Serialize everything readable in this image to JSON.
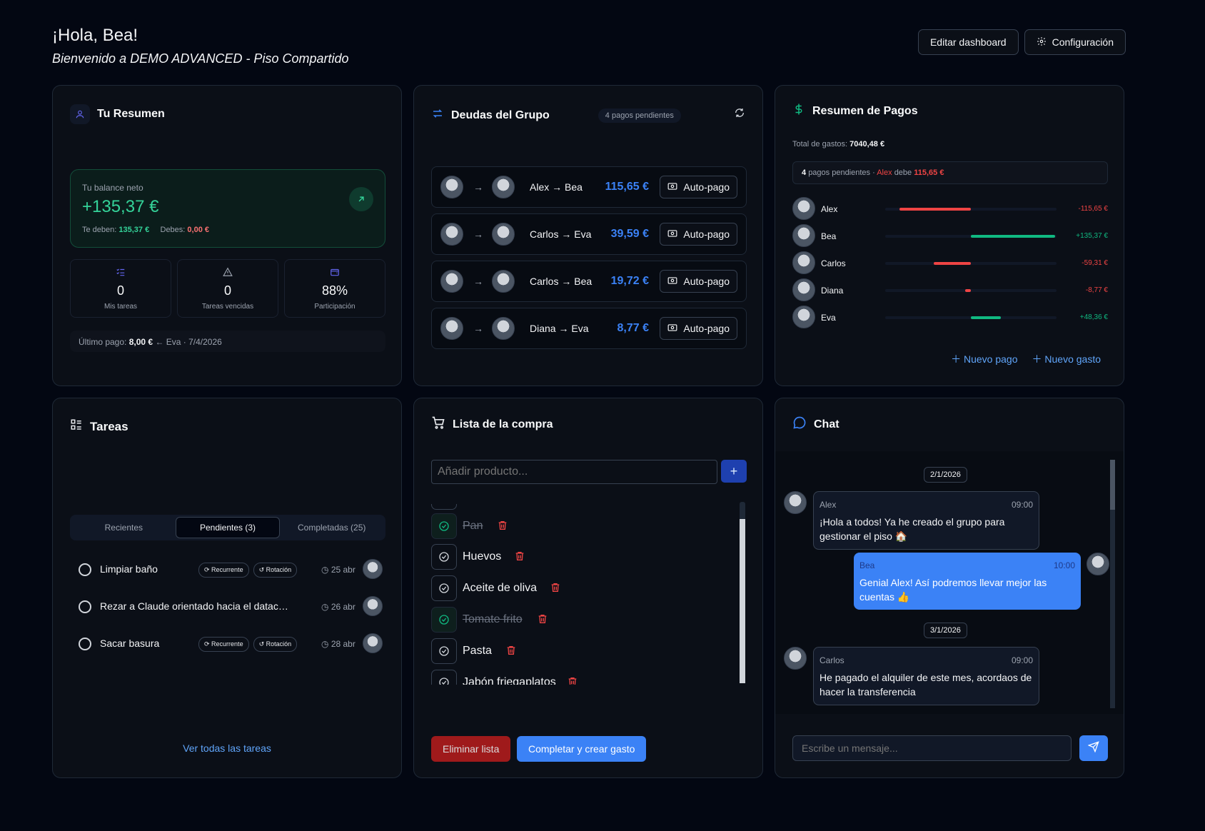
{
  "header": {
    "greeting": "¡Hola, Bea!",
    "welcome": "Bienvenido a DEMO ADVANCED - Piso Compartido",
    "edit_label": "Editar dashboard",
    "config_label": "Configuración"
  },
  "summary": {
    "title": "Tu Resumen",
    "balance_label": "Tu balance neto",
    "balance_value": "+135,37 €",
    "owed_label": "Te deben:",
    "owed_value": "135,37 €",
    "owe_label": "Debes:",
    "owe_value": "0,00 €",
    "stats": [
      {
        "value": "0",
        "label": "Mis tareas"
      },
      {
        "value": "0",
        "label": "Tareas vencidas"
      },
      {
        "value": "88%",
        "label": "Participación"
      }
    ],
    "last_prefix": "Último pago:",
    "last_amount": "8,00 €",
    "last_rest": "← Eva · 7/4/2026"
  },
  "debts": {
    "title": "Deudas del Grupo",
    "badge": "4 pagos pendientes",
    "autopay_label": "Auto-pago",
    "items": [
      {
        "names": "Alex → Bea",
        "amount": "115,65 €"
      },
      {
        "names": "Carlos → Eva",
        "amount": "39,59 €"
      },
      {
        "names": "Carlos → Bea",
        "amount": "19,72 €"
      },
      {
        "names": "Diana → Eva",
        "amount": "8,77 €"
      }
    ]
  },
  "payments": {
    "title": "Resumen de Pagos",
    "total_label": "Total de gastos:",
    "total_value": "7040,48 €",
    "pending_count": "4",
    "pending_text": "pagos pendientes ·",
    "pending_who": "Alex",
    "pending_owes": "debe",
    "pending_amount": "115,65 €",
    "colors": {
      "negative": "#ef4444",
      "positive": "#10b981"
    },
    "people": [
      {
        "name": "Alex",
        "value": "-115,65 €",
        "amount": -115.65
      },
      {
        "name": "Bea",
        "value": "+135,37 €",
        "amount": 135.37
      },
      {
        "name": "Carlos",
        "value": "-59,31 €",
        "amount": -59.31
      },
      {
        "name": "Diana",
        "value": "-8,77 €",
        "amount": -8.77
      },
      {
        "name": "Eva",
        "value": "+48,36 €",
        "amount": 48.36
      }
    ],
    "new_payment": "Nuevo pago",
    "new_expense": "Nuevo gasto"
  },
  "tasks": {
    "title": "Tareas",
    "tabs": [
      "Recientes",
      "Pendientes (3)",
      "Completadas (25)"
    ],
    "tag_recurring": "Recurrente",
    "tag_rotation": "Rotación",
    "items": [
      {
        "title": "Limpiar baño",
        "date": "25 abr"
      },
      {
        "title": "Rezar a Claude orientado hacia el datacenter",
        "date": "26 abr"
      },
      {
        "title": "Sacar basura",
        "date": "28 abr"
      }
    ],
    "view_all": "Ver todas las tareas"
  },
  "shopping": {
    "title": "Lista de la compra",
    "placeholder": "Añadir producto...",
    "items": [
      {
        "name": "Pan",
        "done": true
      },
      {
        "name": "Huevos",
        "done": false
      },
      {
        "name": "Aceite de oliva",
        "done": false
      },
      {
        "name": "Tomate frito",
        "done": true
      },
      {
        "name": "Pasta",
        "done": false
      },
      {
        "name": "Jabón friegaplatos",
        "done": false
      }
    ],
    "delete_label": "Eliminar lista",
    "complete_label": "Completar y crear gasto"
  },
  "chat": {
    "title": "Chat",
    "date1": "2/1/2026",
    "date2": "3/1/2026",
    "messages": [
      {
        "author": "Alex",
        "time": "09:00",
        "text": "¡Hola a todos! Ya he creado el grupo para gestionar el piso 🏠"
      },
      {
        "author": "Bea",
        "time": "10:00",
        "text": "Genial Alex! Así podremos llevar mejor las cuentas 👍"
      },
      {
        "author": "Carlos",
        "time": "09:00",
        "text": "He pagado el alquiler de este mes, acordaos de hacer la transferencia"
      }
    ],
    "input_placeholder": "Escribe un mensaje..."
  }
}
